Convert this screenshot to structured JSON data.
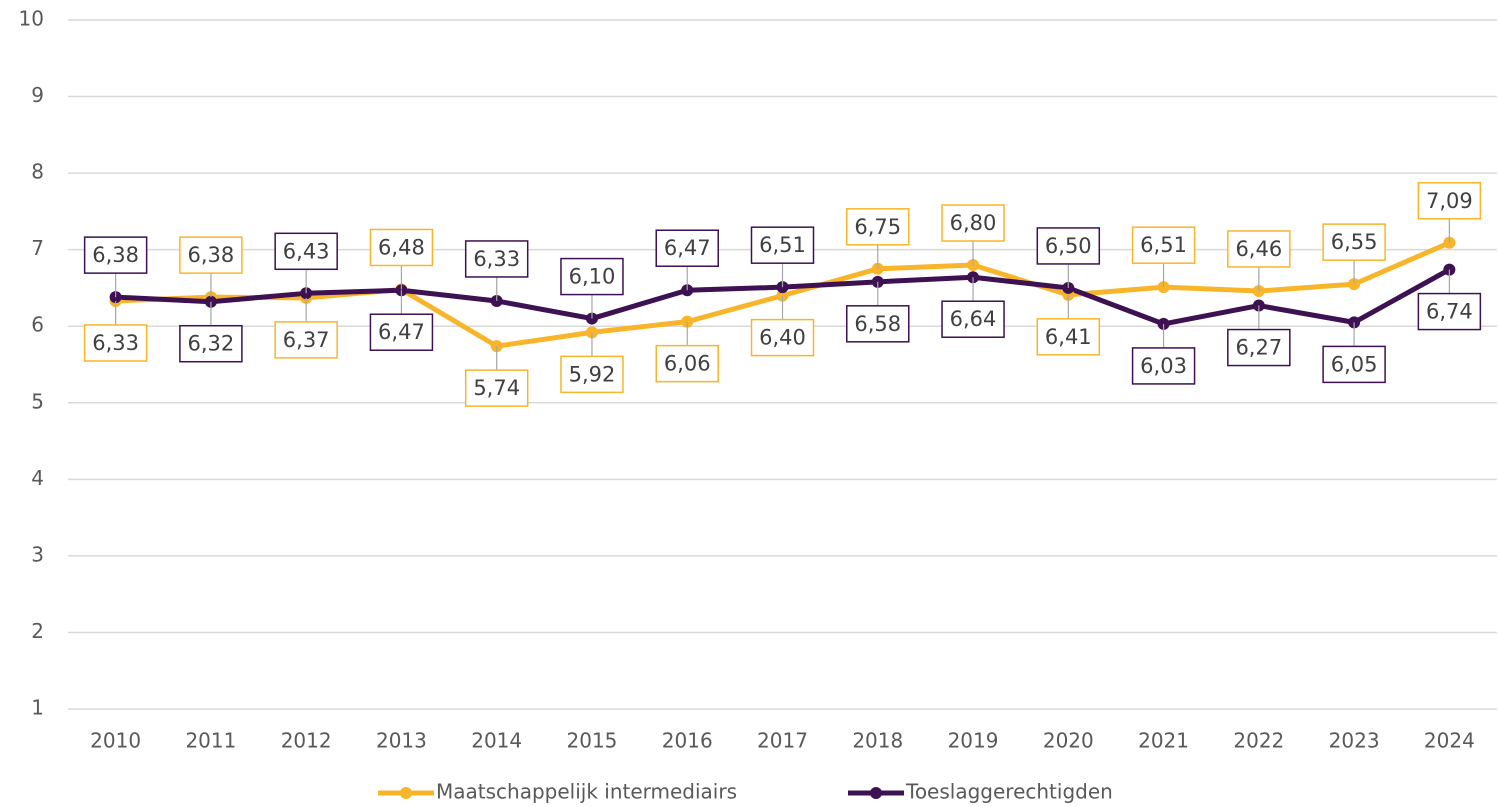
{
  "chart_data": {
    "type": "line",
    "categories": [
      "2010",
      "2011",
      "2012",
      "2013",
      "2014",
      "2015",
      "2016",
      "2017",
      "2018",
      "2019",
      "2020",
      "2021",
      "2022",
      "2023",
      "2024"
    ],
    "series": [
      {
        "name": "Maatschappelijk intermediairs",
        "color": "#f9b52a",
        "values": [
          6.33,
          6.38,
          6.37,
          6.48,
          5.74,
          5.92,
          6.06,
          6.4,
          6.75,
          6.8,
          6.41,
          6.51,
          6.46,
          6.55,
          7.09
        ],
        "value_labels": [
          "6,33",
          "6,38",
          "6,37",
          "6,48",
          "5,74",
          "5,92",
          "6,06",
          "6,40",
          "6,75",
          "6,80",
          "6,41",
          "6,51",
          "6,46",
          "6,55",
          "7,09"
        ]
      },
      {
        "name": "Toeslaggerechtigden",
        "color": "#3d1152",
        "values": [
          6.38,
          6.32,
          6.43,
          6.47,
          6.33,
          6.1,
          6.47,
          6.51,
          6.58,
          6.64,
          6.5,
          6.03,
          6.27,
          6.05,
          6.74
        ],
        "value_labels": [
          "6,38",
          "6,32",
          "6,43",
          "6,47",
          "6,33",
          "6,10",
          "6,47",
          "6,51",
          "6,58",
          "6,64",
          "6,50",
          "6,03",
          "6,27",
          "6,05",
          "6,74"
        ]
      }
    ],
    "ylim": [
      1,
      10
    ],
    "yticks": [
      1,
      2,
      3,
      4,
      5,
      6,
      7,
      8,
      9,
      10
    ],
    "grid": true,
    "legend": "bottom"
  }
}
